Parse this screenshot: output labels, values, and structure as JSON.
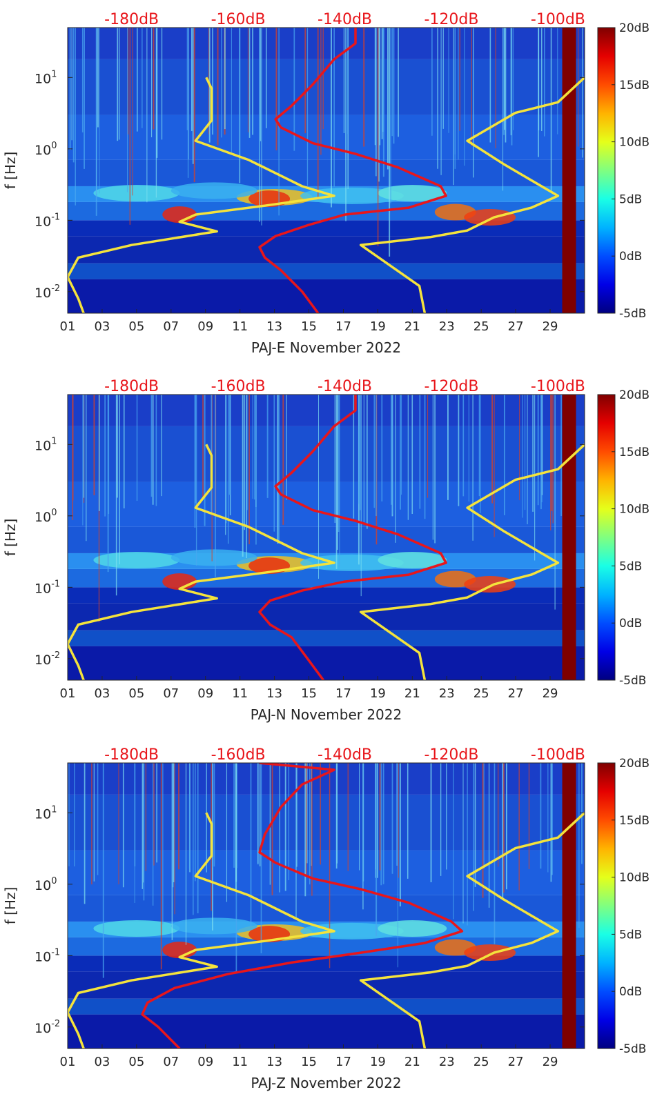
{
  "colors": {
    "power_axis": "#e8161b",
    "yellow_curve": "#f4e33c",
    "red_curve": "#e8161b",
    "saturated_band": "#7f0000"
  },
  "chart_data": [
    {
      "type": "heatmap",
      "title": "",
      "xlabel": "PAJ-E November 2022",
      "ylabel": "f [Hz]",
      "x_tick_labels": [
        "01",
        "03",
        "05",
        "07",
        "09",
        "11",
        "13",
        "15",
        "17",
        "19",
        "21",
        "23",
        "25",
        "27",
        "29"
      ],
      "x_tick_days": [
        1,
        3,
        5,
        7,
        9,
        11,
        13,
        15,
        17,
        19,
        21,
        23,
        25,
        27,
        29
      ],
      "xlim_days": [
        1,
        31
      ],
      "y_scale": "log",
      "ylim_hz": [
        0.005,
        50
      ],
      "y_ticks": [
        {
          "value": 0.01,
          "label_base": "10",
          "label_exp": "-2"
        },
        {
          "value": 0.1,
          "label_base": "10",
          "label_exp": "-1"
        },
        {
          "value": 1,
          "label_base": "10",
          "label_exp": "0"
        },
        {
          "value": 10,
          "label_base": "10",
          "label_exp": "1"
        }
      ],
      "top_axis_labels": [
        "-180dB",
        "-160dB",
        "-140dB",
        "-120dB",
        "-100dB"
      ],
      "top_axis_values_db": [
        -180,
        -160,
        -140,
        -120,
        -100
      ],
      "top_axis_range_db": [
        -192,
        -95
      ],
      "colorbar": {
        "range_db": [
          -5,
          20
        ],
        "tick_labels": [
          "20dB",
          "15dB",
          "10dB",
          "5dB",
          "0dB",
          "-5dB"
        ],
        "tick_values": [
          20,
          15,
          10,
          5,
          0,
          -5
        ]
      },
      "saturated_days": [
        29.7,
        30.5
      ],
      "red_curve_db_hz": [
        [
          -138,
          50
        ],
        [
          -138,
          30
        ],
        [
          -142,
          18
        ],
        [
          -146,
          8
        ],
        [
          -150,
          4
        ],
        [
          -153,
          2.6
        ],
        [
          -152,
          2.0
        ],
        [
          -146,
          1.2
        ],
        [
          -138,
          0.85
        ],
        [
          -130,
          0.55
        ],
        [
          -122,
          0.3
        ],
        [
          -121,
          0.22
        ],
        [
          -128,
          0.15
        ],
        [
          -140,
          0.12
        ],
        [
          -147,
          0.085
        ],
        [
          -153,
          0.06
        ],
        [
          -156,
          0.042
        ],
        [
          -155,
          0.03
        ],
        [
          -152,
          0.02
        ],
        [
          -148,
          0.01
        ],
        [
          -145,
          0.005
        ]
      ],
      "yellow_low_db_hz": [
        [
          -166,
          10
        ],
        [
          -165,
          7
        ],
        [
          -165,
          2.5
        ],
        [
          -168,
          1.3
        ],
        [
          -158,
          0.7
        ],
        [
          -148,
          0.3
        ],
        [
          -142,
          0.22
        ],
        [
          -155,
          0.16
        ],
        [
          -168,
          0.12
        ],
        [
          -171,
          0.095
        ],
        [
          -164,
          0.07
        ],
        [
          -180,
          0.045
        ],
        [
          -190,
          0.03
        ],
        [
          -192,
          0.016
        ],
        [
          -190,
          0.008
        ],
        [
          -189,
          0.005
        ]
      ],
      "yellow_high_db_hz": [
        [
          -95,
          10
        ],
        [
          -100,
          4.5
        ],
        [
          -108,
          3.2
        ],
        [
          -117,
          1.3
        ],
        [
          -110,
          0.6
        ],
        [
          -100,
          0.22
        ],
        [
          -105,
          0.15
        ],
        [
          -112,
          0.11
        ],
        [
          -117,
          0.072
        ],
        [
          -124,
          0.058
        ],
        [
          -137,
          0.045
        ],
        [
          -126,
          0.012
        ],
        [
          -125,
          0.005
        ]
      ],
      "lines_seed": 17
    },
    {
      "type": "heatmap",
      "title": "",
      "xlabel": "PAJ-N November 2022",
      "ylabel": "f [Hz]",
      "x_tick_labels": [
        "01",
        "03",
        "05",
        "07",
        "09",
        "11",
        "13",
        "15",
        "17",
        "19",
        "21",
        "23",
        "25",
        "27",
        "29"
      ],
      "x_tick_days": [
        1,
        3,
        5,
        7,
        9,
        11,
        13,
        15,
        17,
        19,
        21,
        23,
        25,
        27,
        29
      ],
      "xlim_days": [
        1,
        31
      ],
      "y_scale": "log",
      "ylim_hz": [
        0.005,
        50
      ],
      "y_ticks": [
        {
          "value": 0.01,
          "label_base": "10",
          "label_exp": "-2"
        },
        {
          "value": 0.1,
          "label_base": "10",
          "label_exp": "-1"
        },
        {
          "value": 1,
          "label_base": "10",
          "label_exp": "0"
        },
        {
          "value": 10,
          "label_base": "10",
          "label_exp": "1"
        }
      ],
      "top_axis_labels": [
        "-180dB",
        "-160dB",
        "-140dB",
        "-120dB",
        "-100dB"
      ],
      "top_axis_values_db": [
        -180,
        -160,
        -140,
        -120,
        -100
      ],
      "top_axis_range_db": [
        -192,
        -95
      ],
      "colorbar": {
        "range_db": [
          -5,
          20
        ],
        "tick_labels": [
          "20dB",
          "15dB",
          "10dB",
          "5dB",
          "0dB",
          "-5dB"
        ],
        "tick_values": [
          20,
          15,
          10,
          5,
          0,
          -5
        ]
      },
      "saturated_days": [
        29.7,
        30.5
      ],
      "red_curve_db_hz": [
        [
          -138,
          50
        ],
        [
          -138,
          30
        ],
        [
          -142,
          18
        ],
        [
          -146,
          8
        ],
        [
          -150,
          4
        ],
        [
          -153,
          2.6
        ],
        [
          -152,
          2.0
        ],
        [
          -146,
          1.2
        ],
        [
          -138,
          0.85
        ],
        [
          -130,
          0.55
        ],
        [
          -122,
          0.3
        ],
        [
          -121,
          0.22
        ],
        [
          -128,
          0.15
        ],
        [
          -140,
          0.12
        ],
        [
          -148,
          0.09
        ],
        [
          -154,
          0.065
        ],
        [
          -156,
          0.045
        ],
        [
          -154,
          0.03
        ],
        [
          -150,
          0.02
        ],
        [
          -147,
          0.01
        ],
        [
          -144,
          0.005
        ]
      ],
      "yellow_low_db_hz": [
        [
          -166,
          10
        ],
        [
          -165,
          7
        ],
        [
          -165,
          2.5
        ],
        [
          -168,
          1.3
        ],
        [
          -158,
          0.7
        ],
        [
          -148,
          0.3
        ],
        [
          -142,
          0.22
        ],
        [
          -155,
          0.16
        ],
        [
          -168,
          0.12
        ],
        [
          -171,
          0.095
        ],
        [
          -164,
          0.07
        ],
        [
          -180,
          0.045
        ],
        [
          -190,
          0.03
        ],
        [
          -192,
          0.016
        ],
        [
          -190,
          0.008
        ],
        [
          -189,
          0.005
        ]
      ],
      "yellow_high_db_hz": [
        [
          -95,
          10
        ],
        [
          -100,
          4.5
        ],
        [
          -108,
          3.2
        ],
        [
          -117,
          1.3
        ],
        [
          -110,
          0.6
        ],
        [
          -100,
          0.22
        ],
        [
          -105,
          0.15
        ],
        [
          -112,
          0.11
        ],
        [
          -117,
          0.072
        ],
        [
          -124,
          0.058
        ],
        [
          -137,
          0.045
        ],
        [
          -126,
          0.012
        ],
        [
          -125,
          0.005
        ]
      ],
      "lines_seed": 29
    },
    {
      "type": "heatmap",
      "title": "",
      "xlabel": "PAJ-Z November 2022",
      "ylabel": "f [Hz]",
      "x_tick_labels": [
        "01",
        "03",
        "05",
        "07",
        "09",
        "11",
        "13",
        "15",
        "17",
        "19",
        "21",
        "23",
        "25",
        "27",
        "29"
      ],
      "x_tick_days": [
        1,
        3,
        5,
        7,
        9,
        11,
        13,
        15,
        17,
        19,
        21,
        23,
        25,
        27,
        29
      ],
      "xlim_days": [
        1,
        31
      ],
      "y_scale": "log",
      "ylim_hz": [
        0.005,
        50
      ],
      "y_ticks": [
        {
          "value": 0.01,
          "label_base": "10",
          "label_exp": "-2"
        },
        {
          "value": 0.1,
          "label_base": "10",
          "label_exp": "-1"
        },
        {
          "value": 1,
          "label_base": "10",
          "label_exp": "0"
        },
        {
          "value": 10,
          "label_base": "10",
          "label_exp": "1"
        }
      ],
      "top_axis_labels": [
        "-180dB",
        "-160dB",
        "-140dB",
        "-120dB",
        "-100dB"
      ],
      "top_axis_values_db": [
        -180,
        -160,
        -140,
        -120,
        -100
      ],
      "top_axis_range_db": [
        -192,
        -95
      ],
      "colorbar": {
        "range_db": [
          -5,
          20
        ],
        "tick_labels": [
          "20dB",
          "15dB",
          "10dB",
          "5dB",
          "0dB",
          "-5dB"
        ],
        "tick_values": [
          20,
          15,
          10,
          5,
          0,
          -5
        ]
      },
      "saturated_days": [
        29.7,
        30.5
      ],
      "red_curve_db_hz": [
        [
          -156,
          50
        ],
        [
          -142,
          40
        ],
        [
          -148,
          25
        ],
        [
          -152,
          12
        ],
        [
          -155,
          5
        ],
        [
          -156,
          2.8
        ],
        [
          -153,
          2.0
        ],
        [
          -146,
          1.2
        ],
        [
          -137,
          0.85
        ],
        [
          -128,
          0.55
        ],
        [
          -120,
          0.3
        ],
        [
          -118,
          0.22
        ],
        [
          -125,
          0.15
        ],
        [
          -137,
          0.11
        ],
        [
          -150,
          0.08
        ],
        [
          -162,
          0.055
        ],
        [
          -172,
          0.035
        ],
        [
          -177,
          0.022
        ],
        [
          -178,
          0.015
        ],
        [
          -175,
          0.01
        ],
        [
          -171,
          0.005
        ]
      ],
      "yellow_low_db_hz": [
        [
          -166,
          10
        ],
        [
          -165,
          7
        ],
        [
          -165,
          2.5
        ],
        [
          -168,
          1.3
        ],
        [
          -158,
          0.7
        ],
        [
          -148,
          0.3
        ],
        [
          -142,
          0.22
        ],
        [
          -155,
          0.16
        ],
        [
          -168,
          0.12
        ],
        [
          -171,
          0.095
        ],
        [
          -164,
          0.07
        ],
        [
          -180,
          0.045
        ],
        [
          -190,
          0.03
        ],
        [
          -192,
          0.016
        ],
        [
          -190,
          0.008
        ],
        [
          -189,
          0.005
        ]
      ],
      "yellow_high_db_hz": [
        [
          -95,
          10
        ],
        [
          -100,
          4.5
        ],
        [
          -108,
          3.2
        ],
        [
          -117,
          1.3
        ],
        [
          -110,
          0.6
        ],
        [
          -100,
          0.22
        ],
        [
          -105,
          0.15
        ],
        [
          -112,
          0.11
        ],
        [
          -117,
          0.072
        ],
        [
          -124,
          0.058
        ],
        [
          -137,
          0.045
        ],
        [
          -126,
          0.012
        ],
        [
          -125,
          0.005
        ]
      ],
      "lines_seed": 41
    }
  ]
}
